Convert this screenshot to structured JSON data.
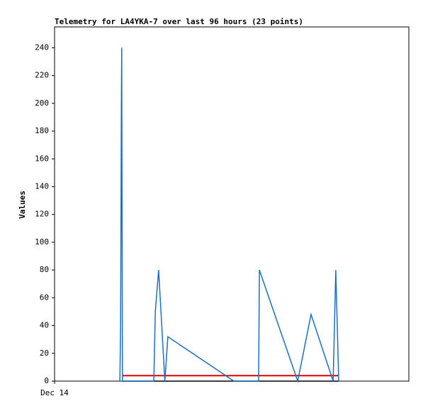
{
  "chart_data": {
    "type": "line",
    "title": "Telemetry for LA4YKA-7 over last 96 hours (23 points)",
    "y_label": "Values",
    "xlim": [
      0,
      96
    ],
    "xticks": [
      {
        "value": 0,
        "label": "Dec 14"
      }
    ],
    "ylim": [
      0,
      255
    ],
    "yticks": [
      0,
      20,
      40,
      60,
      80,
      100,
      120,
      140,
      160,
      180,
      200,
      220,
      240
    ],
    "series": [
      {
        "color": "#1a6fc4",
        "x": [
          17.7,
          17.9,
          18.0,
          18.1,
          18.2,
          18.4,
          26.9,
          27.3,
          28.2,
          29.9,
          30.7,
          48.6,
          55.3,
          55.5,
          65.9,
          69.5,
          75.5,
          76.2,
          76.6,
          77.0
        ],
        "values": [
          0,
          40,
          120,
          200,
          240,
          0,
          0,
          50,
          80,
          0,
          32,
          0,
          0,
          80,
          0,
          48,
          0,
          80,
          40,
          0
        ]
      },
      {
        "color": "#e00000",
        "x": [
          18.4,
          77.0
        ],
        "values": [
          4,
          4
        ]
      },
      {
        "color": "#000000",
        "x": [
          18.4,
          77.0
        ],
        "values": [
          0,
          0
        ]
      }
    ]
  }
}
